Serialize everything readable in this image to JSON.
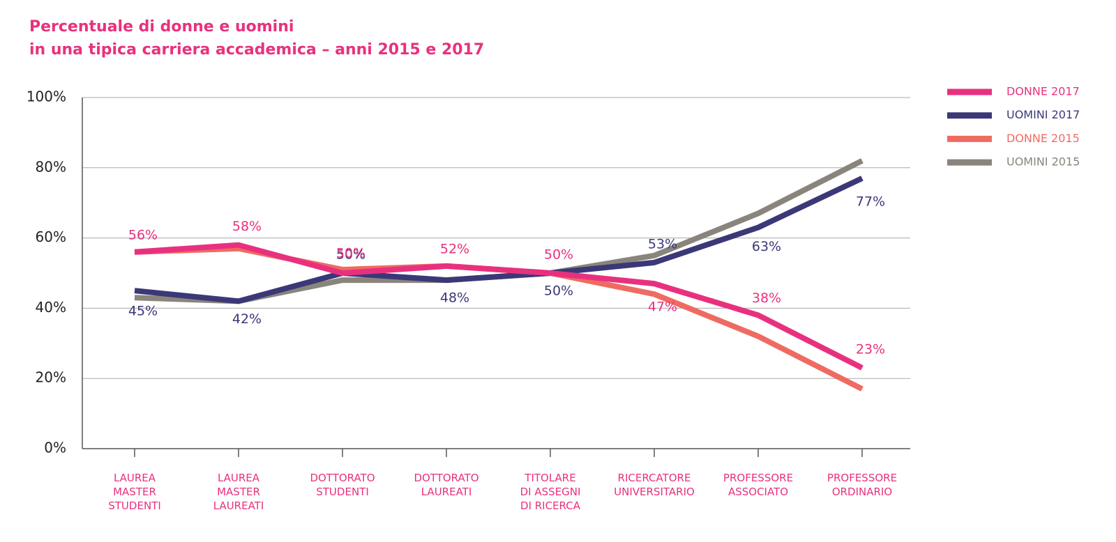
{
  "chart_data": {
    "type": "line",
    "title": "Percentuale di donne e uomini\nin una tipica carriera accademica – anni 2015 e 2017",
    "categories": [
      "LAUREA\nMASTER\nSTUDENTI",
      "LAUREA\nMASTER\nLAUREATI",
      "DOTTORATO\nSTUDENTI",
      "DOTTORATO\nLAUREATI",
      "TITOLARE\nDI ASSEGNI\nDI RICERCA",
      "RICERCATORE\nUNIVERSITARIO",
      "PROFESSORE\nASSOCIATO",
      "PROFESSORE\nORDINARIO"
    ],
    "series": [
      {
        "name": "DONNE 2017",
        "color": "#e8317e",
        "values": [
          56,
          58,
          50,
          52,
          50,
          47,
          38,
          23
        ],
        "value_labels": [
          "56%",
          "58%",
          "50%",
          "52%",
          "50%",
          "47%",
          "38%",
          "23%"
        ]
      },
      {
        "name": "UOMINI 2017",
        "color": "#3b3878",
        "values": [
          45,
          42,
          50,
          48,
          50,
          53,
          63,
          77
        ],
        "value_labels": [
          "45%",
          "42%",
          "50%",
          "48%",
          "50%",
          "53%",
          "63%",
          "77%"
        ]
      },
      {
        "name": "DONNE 2015",
        "color": "#ef6b62",
        "values": [
          56,
          57,
          51,
          52,
          50,
          44,
          32,
          17
        ]
      },
      {
        "name": "UOMINI 2015",
        "color": "#8a857c",
        "values": [
          43,
          42,
          48,
          48,
          50,
          55,
          67,
          82
        ]
      }
    ],
    "ylim": [
      0,
      100
    ],
    "yticks": [
      {
        "value": 0,
        "label": "0%"
      },
      {
        "value": 20,
        "label": "20%"
      },
      {
        "value": 40,
        "label": "40%"
      },
      {
        "value": 60,
        "label": "60%"
      },
      {
        "value": 80,
        "label": "80%"
      },
      {
        "value": 100,
        "label": "100%"
      }
    ],
    "grid": true,
    "legend": "right"
  }
}
